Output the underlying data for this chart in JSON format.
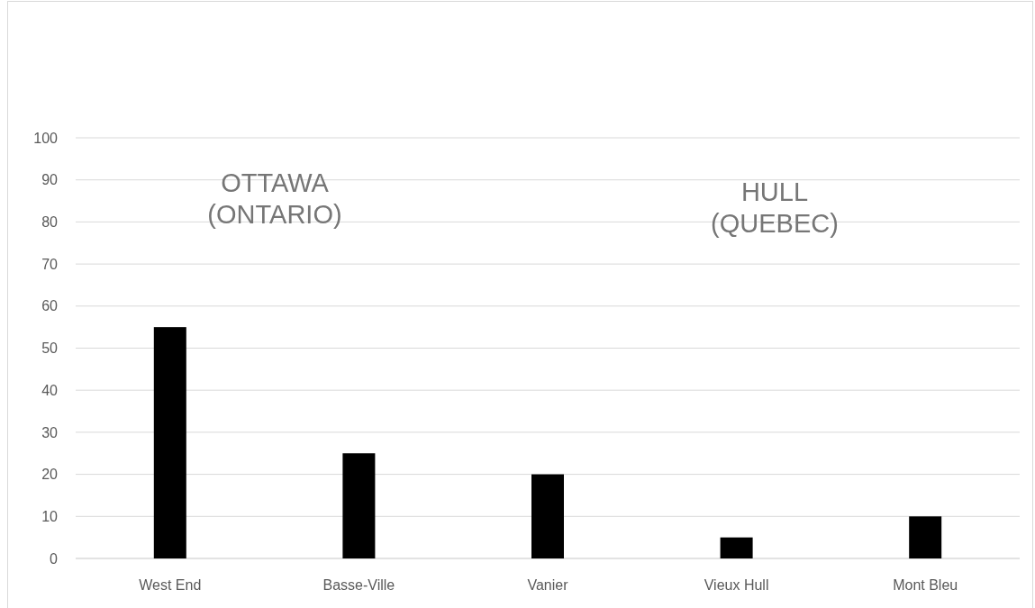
{
  "chart_data": {
    "type": "bar",
    "categories": [
      "West End",
      "Basse-Ville",
      "Vanier",
      "Vieux Hull",
      "Mont Bleu"
    ],
    "values": [
      55,
      25,
      20,
      5,
      10
    ],
    "color": "#000000",
    "ylim": [
      0,
      100
    ],
    "yticks": [
      0,
      10,
      20,
      30,
      40,
      50,
      60,
      70,
      80,
      90,
      100
    ],
    "grid": "y",
    "annotations": [
      "OTTAWA\n(ONTARIO)",
      "HULL\n(QUEBEC)"
    ]
  }
}
